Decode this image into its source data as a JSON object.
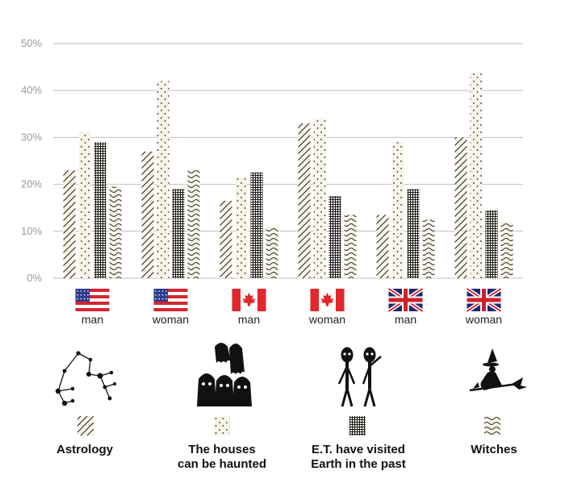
{
  "chart_data": {
    "type": "bar",
    "ylim": [
      0,
      50
    ],
    "yticks": [
      "0%",
      "10%",
      "20%",
      "30%",
      "40%",
      "50%"
    ],
    "grid": true,
    "groups": [
      {
        "country_flag": "usa-flag",
        "label": "man"
      },
      {
        "country_flag": "usa-flag",
        "label": "woman"
      },
      {
        "country_flag": "canada-flag",
        "label": "man"
      },
      {
        "country_flag": "canada-flag",
        "label": "woman"
      },
      {
        "country_flag": "uk-flag",
        "label": "man"
      },
      {
        "country_flag": "uk-flag",
        "label": "woman"
      }
    ],
    "series": [
      {
        "name": "Astrology",
        "pattern": "diagonal-hatch",
        "icon": "constellation-icon",
        "values": [
          23,
          27,
          16.5,
          33,
          13.5,
          30
        ]
      },
      {
        "name": "The houses can be haunted",
        "pattern": "dots",
        "icon": "ghosts-icon",
        "values": [
          31,
          42,
          21.5,
          34,
          29,
          44
        ]
      },
      {
        "name": "E.T. have visited Earth in the past",
        "pattern": "grid",
        "icon": "aliens-icon",
        "values": [
          29,
          19,
          22.5,
          17.5,
          19,
          14.5
        ]
      },
      {
        "name": "Witches",
        "pattern": "wavy-lines",
        "icon": "witch-icon",
        "values": [
          19.5,
          23,
          11,
          13.5,
          12.5,
          12
        ]
      }
    ]
  },
  "legend": {
    "items": [
      {
        "line1": "Astrology",
        "line2": ""
      },
      {
        "line1": "The houses",
        "line2": "can be haunted"
      },
      {
        "line1": "E.T. have visited",
        "line2": "Earth in the past"
      },
      {
        "line1": "Witches",
        "line2": ""
      }
    ]
  },
  "colors": {
    "bar_fill": "#f8f4e8",
    "bar_stroke": "#1a1a1a",
    "grid": "#bfbfbf",
    "tick_text": "#9a9a9a",
    "usa_red": "#d22630",
    "usa_blue": "#2f3b8f",
    "canada_red": "#e0272b",
    "uk_blue": "#1f2a6b",
    "uk_red": "#d0202a"
  }
}
